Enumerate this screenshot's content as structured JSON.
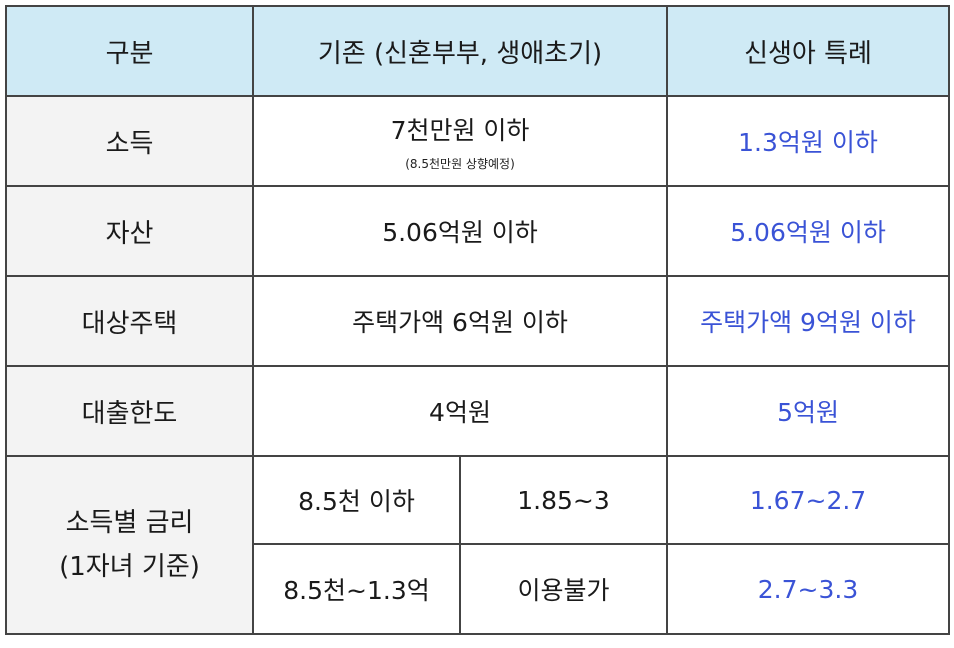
{
  "colors": {
    "header_bg": "#cfeaf5",
    "label_bg": "#f3f3f3",
    "special_text": "#3a53d6",
    "border": "#444444"
  },
  "header": {
    "category": "구분",
    "existing": "기존 (신혼부부, 생애초기)",
    "special": "신생아 특례"
  },
  "rows": {
    "income": {
      "label": "소득",
      "existing": "7천만원 이하",
      "existing_note": "(8.5천만원 상향예정)",
      "special": "1.3억원 이하"
    },
    "assets": {
      "label": "자산",
      "existing": "5.06억원 이하",
      "special": "5.06억원 이하"
    },
    "housing": {
      "label": "대상주택",
      "existing": "주택가액 6억원 이하",
      "special": "주택가액 9억원 이하"
    },
    "loan_limit": {
      "label": "대출한도",
      "existing": "4억원",
      "special": "5억원"
    },
    "rate": {
      "label_line1": "소득별 금리",
      "label_line2": "(1자녀 기준)",
      "tiers": [
        {
          "income": "8.5천 이하",
          "existing": "1.85~3",
          "special": "1.67~2.7"
        },
        {
          "income": "8.5천~1.3억",
          "existing": "이용불가",
          "special": "2.7~3.3"
        }
      ]
    }
  }
}
